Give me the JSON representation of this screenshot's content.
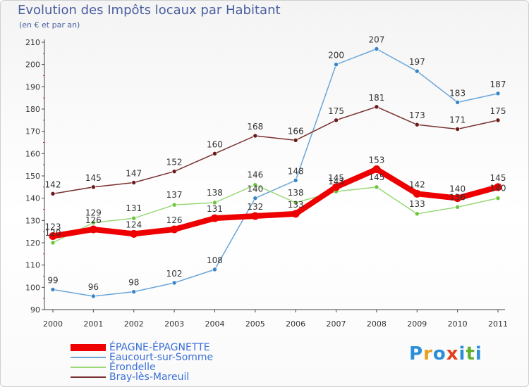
{
  "title": "Evolution des Impôts locaux par Habitant",
  "subtitle": "(en € et par an)",
  "logo": {
    "text": "Proxiti",
    "letters": [
      "P",
      "r",
      "o",
      "x",
      "i",
      "t",
      "i"
    ],
    "colors": [
      "#2a8fd8",
      "#e8a020",
      "#2a8fd8",
      "#e04020",
      "#2a8fd8",
      "#60b030",
      "#2a8fd8"
    ]
  },
  "chart_data": {
    "type": "line",
    "title": "Evolution des Impôts locaux par Habitant",
    "subtitle": "(en € et par an)",
    "xlabel": "",
    "ylabel": "",
    "x": [
      "2000",
      "2001",
      "2002",
      "2003",
      "2004",
      "2005",
      "2006",
      "2007",
      "2008",
      "2009",
      "2010",
      "2011"
    ],
    "ylim": [
      90,
      210
    ],
    "yticks": [
      "90",
      "100",
      "110",
      "120",
      "130",
      "140",
      "150",
      "160",
      "170",
      "180",
      "190",
      "200",
      "210"
    ],
    "legend_position": "bottom-left",
    "grid": false,
    "series": [
      {
        "name": "ÉPAGNE-ÉPAGNETTE",
        "color": "#ee0000",
        "marker_color": "#ee0000",
        "width": 8,
        "values": [
          123,
          126,
          124,
          126,
          131,
          132,
          133,
          145,
          153,
          142,
          140,
          145
        ],
        "labels": [
          "123",
          "126",
          "124",
          "126",
          "131",
          "132",
          "133",
          "145",
          "153",
          "142",
          "140",
          "145"
        ]
      },
      {
        "name": "Eaucourt-sur-Somme",
        "color": "#6aa5d8",
        "marker_color": "#3a85c8",
        "width": 1.5,
        "values": [
          99,
          96,
          98,
          102,
          108,
          140,
          148,
          200,
          207,
          197,
          183,
          187
        ],
        "labels": [
          "99",
          "96",
          "98",
          "102",
          "108",
          "140",
          "148",
          "200",
          "207",
          "197",
          "183",
          "187"
        ]
      },
      {
        "name": "Érondelle",
        "color": "#99d877",
        "marker_color": "#6cc63c",
        "width": 1.5,
        "values": [
          120,
          129,
          131,
          137,
          138,
          146,
          138,
          143,
          145,
          133,
          136,
          140
        ],
        "labels": [
          "120",
          "129",
          "131",
          "137",
          "138",
          "146",
          "138",
          "143",
          "145",
          "133",
          "136",
          "140"
        ]
      },
      {
        "name": "Bray-lès-Mareuil",
        "color": "#7a3030",
        "marker_color": "#6a1a1a",
        "width": 1.5,
        "values": [
          142,
          145,
          147,
          152,
          160,
          168,
          166,
          175,
          181,
          173,
          171,
          175
        ],
        "labels": [
          "142",
          "145",
          "147",
          "152",
          "160",
          "168",
          "166",
          "175",
          "181",
          "173",
          "171",
          "175"
        ]
      }
    ]
  }
}
